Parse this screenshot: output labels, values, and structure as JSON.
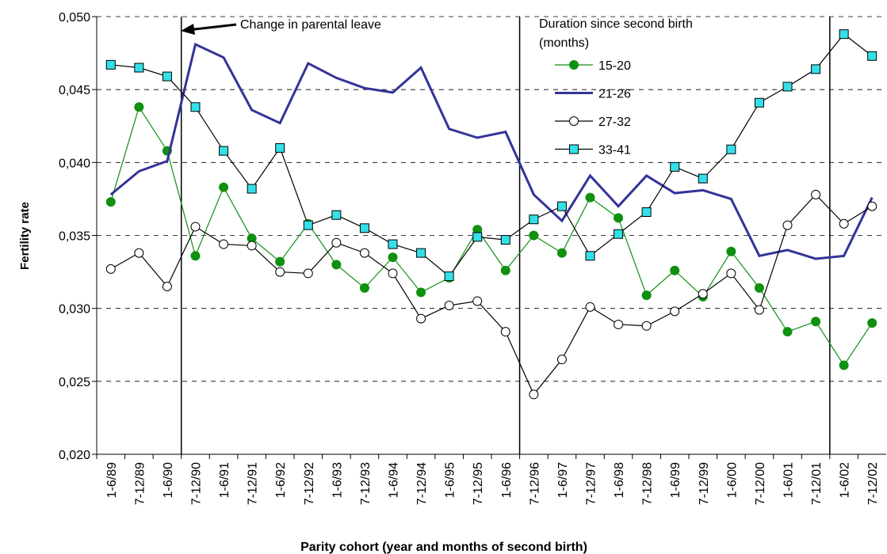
{
  "chart_data": {
    "type": "line",
    "y_label": "Fertility rate",
    "x_label": "Parity cohort (year and months of second birth)",
    "annotation": "Change in parental leave",
    "legend_title": "Duration since second birth (months)",
    "categories": [
      "1-6/89",
      "7-12/89",
      "1-6/90",
      "7-12/90",
      "1-6/91",
      "7-12/91",
      "1-6/92",
      "7-12/92",
      "1-6/93",
      "7-12/93",
      "1-6/94",
      "7-12/94",
      "1-6/95",
      "7-12/95",
      "1-6/96",
      "7-12/96",
      "1-6/97",
      "7-12/97",
      "1-6/98",
      "7-12/98",
      "1-6/99",
      "7-12/99",
      "1-6/00",
      "7-12/00",
      "1-6/01",
      "7-12/01",
      "1-6/02",
      "7-12/02"
    ],
    "series": [
      {
        "name": "15-20",
        "color": "#109010",
        "line_color": "#109010",
        "marker": "circle",
        "values": [
          0.0373,
          0.0438,
          0.0408,
          0.0336,
          0.0383,
          0.0348,
          0.0332,
          0.0358,
          0.033,
          0.0314,
          0.0335,
          0.0311,
          0.0321,
          0.0354,
          0.0326,
          0.035,
          0.0338,
          0.0376,
          0.0362,
          0.0309,
          0.0326,
          0.0308,
          0.0339,
          0.0314,
          0.0284,
          0.0291,
          0.0261,
          0.029
        ]
      },
      {
        "name": "21-26",
        "color": "#333399",
        "line_color": "#333399",
        "marker": "none",
        "values": [
          0.0378,
          0.0394,
          0.0401,
          0.0481,
          0.0472,
          0.0436,
          0.0427,
          0.0468,
          0.0458,
          0.0451,
          0.0448,
          0.0465,
          0.0423,
          0.0417,
          0.0421,
          0.0378,
          0.036,
          0.0391,
          0.037,
          0.0391,
          0.0379,
          0.0381,
          0.0375,
          0.0336,
          0.034,
          0.0334,
          0.0336,
          0.0376
        ]
      },
      {
        "name": "27-32",
        "color": "#ffffff",
        "line_color": "#000000",
        "marker": "circle",
        "values": [
          0.0327,
          0.0338,
          0.0315,
          0.0356,
          0.0344,
          0.0343,
          0.0325,
          0.0324,
          0.0345,
          0.0338,
          0.0324,
          0.0293,
          0.0302,
          0.0305,
          0.0284,
          0.0241,
          0.0265,
          0.0301,
          0.0289,
          0.0288,
          0.0298,
          0.031,
          0.0324,
          0.0299,
          0.0357,
          0.0378,
          0.0358,
          0.037
        ]
      },
      {
        "name": "33-41",
        "color": "#33e0e8",
        "line_color": "#000000",
        "marker": "square",
        "values": [
          0.0467,
          0.0465,
          0.0459,
          0.0438,
          0.0408,
          0.0382,
          0.041,
          0.0357,
          0.0364,
          0.0355,
          0.0344,
          0.0338,
          0.0322,
          0.0349,
          0.0347,
          0.0361,
          0.037,
          0.0336,
          0.0351,
          0.0366,
          0.0397,
          0.0389,
          0.0409,
          0.0441,
          0.0452,
          0.0464,
          0.0488,
          0.0473
        ]
      }
    ],
    "ylim": [
      0.02,
      0.05
    ],
    "yticks": [
      {
        "value": 0.02,
        "label": "0,020"
      },
      {
        "value": 0.025,
        "label": "0,025"
      },
      {
        "value": 0.03,
        "label": "0,030"
      },
      {
        "value": 0.035,
        "label": "0,035"
      },
      {
        "value": 0.04,
        "label": "0,040"
      },
      {
        "value": 0.045,
        "label": "0,045"
      },
      {
        "value": 0.05,
        "label": "0,050"
      }
    ],
    "grid": true
  }
}
